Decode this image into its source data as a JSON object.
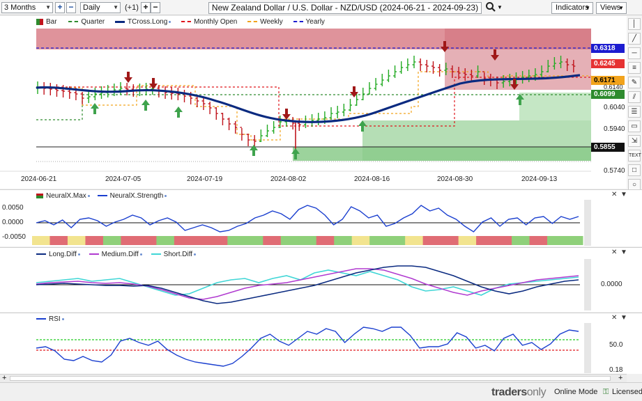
{
  "toolbar": {
    "timeframe": "3 Months",
    "interval": "Daily",
    "offset_label": "(+1)",
    "title": "New Zealand Dollar / U.S. Dollar - NZD/USD (2024-06-21 - 2024-09-23)",
    "indicators_label": "Indicators",
    "views_label": "Views"
  },
  "main_legend": {
    "bar": "Bar",
    "quarter": "Quarter",
    "tcross": "TCross.Long",
    "monthly": "Monthly Open",
    "weekly": "Weekly",
    "yearly": "Yearly"
  },
  "price_labels": {
    "yearly": "0.6318",
    "current": "0.6245",
    "weekly": "0.6171",
    "quarter": "0.6099",
    "low": "0.5855"
  },
  "price_axis": [
    "0.6140",
    "0.6040",
    "0.5940",
    "0.5740"
  ],
  "date_axis": [
    "2024-06-21",
    "2024-07-05",
    "2024-07-19",
    "2024-08-02",
    "2024-08-16",
    "2024-08-30",
    "2024-09-13"
  ],
  "neuralx": {
    "legend_max": "NeuralX.Max",
    "legend_strength": "NeuralX.Strength",
    "axis": [
      "0.0050",
      "0.0000",
      "-0.0050"
    ]
  },
  "diff": {
    "legend_long": "Long.Diff",
    "legend_medium": "Medium.Diff",
    "legend_short": "Short.Diff",
    "axis": [
      "0.0000"
    ]
  },
  "rsi": {
    "legend": "RSI",
    "axis": [
      "50.0",
      "0.18"
    ]
  },
  "status": {
    "brand_a": "traders",
    "brand_b": "only",
    "online_mode": "Online Mode",
    "licensed": "Licensed"
  },
  "colors": {
    "up_bar": "#22aa22",
    "down_bar": "#c0141c",
    "tcross": "#0a2a80",
    "yearly": "#1c1cd0",
    "monthly": "#e0161c",
    "weekly": "#f2a31c",
    "quarter": "#2e8b2e",
    "current": "#e63232"
  }
}
